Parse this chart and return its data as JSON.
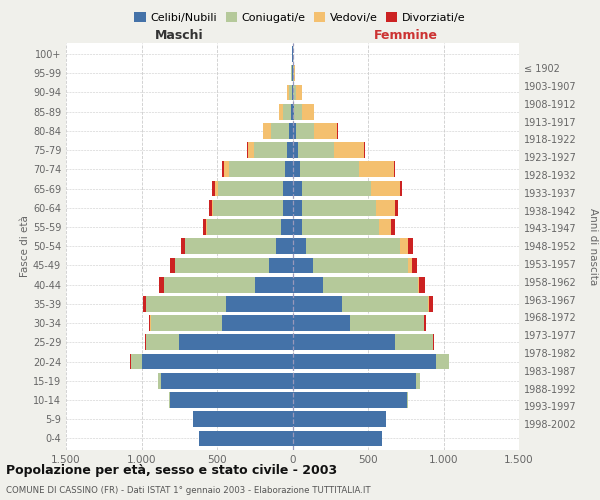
{
  "age_groups": [
    "0-4",
    "5-9",
    "10-14",
    "15-19",
    "20-24",
    "25-29",
    "30-34",
    "35-39",
    "40-44",
    "45-49",
    "50-54",
    "55-59",
    "60-64",
    "65-69",
    "70-74",
    "75-79",
    "80-84",
    "85-89",
    "90-94",
    "95-99",
    "100+"
  ],
  "birth_years": [
    "1998-2002",
    "1993-1997",
    "1988-1992",
    "1983-1987",
    "1978-1982",
    "1973-1977",
    "1968-1972",
    "1963-1967",
    "1958-1962",
    "1953-1957",
    "1948-1952",
    "1943-1947",
    "1938-1942",
    "1933-1937",
    "1928-1932",
    "1923-1927",
    "1918-1922",
    "1913-1917",
    "1908-1912",
    "1903-1907",
    "≤ 1902"
  ],
  "males": {
    "celibi": [
      620,
      660,
      810,
      870,
      1000,
      750,
      470,
      440,
      250,
      155,
      110,
      75,
      65,
      65,
      50,
      35,
      20,
      10,
      5,
      2,
      2
    ],
    "coniugati": [
      1,
      2,
      5,
      20,
      70,
      220,
      470,
      530,
      600,
      620,
      600,
      490,
      460,
      430,
      370,
      220,
      120,
      50,
      15,
      5,
      2
    ],
    "vedovi": [
      0,
      0,
      0,
      1,
      2,
      1,
      2,
      2,
      2,
      5,
      5,
      5,
      10,
      15,
      35,
      40,
      55,
      30,
      15,
      5,
      1
    ],
    "divorziati": [
      0,
      0,
      0,
      1,
      2,
      5,
      10,
      20,
      30,
      30,
      25,
      20,
      20,
      20,
      10,
      5,
      3,
      2,
      1,
      0,
      0
    ]
  },
  "females": {
    "nubili": [
      590,
      620,
      760,
      820,
      950,
      680,
      380,
      330,
      200,
      135,
      90,
      65,
      60,
      60,
      50,
      35,
      20,
      10,
      5,
      2,
      2
    ],
    "coniugate": [
      1,
      2,
      5,
      25,
      85,
      250,
      490,
      570,
      630,
      630,
      620,
      510,
      490,
      460,
      390,
      240,
      120,
      50,
      15,
      5,
      2
    ],
    "vedove": [
      0,
      0,
      0,
      1,
      2,
      2,
      3,
      5,
      10,
      25,
      55,
      80,
      130,
      190,
      230,
      200,
      155,
      80,
      40,
      10,
      1
    ],
    "divorziate": [
      0,
      0,
      0,
      1,
      2,
      5,
      12,
      25,
      35,
      35,
      30,
      25,
      20,
      15,
      8,
      5,
      4,
      2,
      1,
      0,
      0
    ]
  },
  "colors": {
    "celibi": "#4472a8",
    "coniugati": "#b5c99a",
    "vedovi": "#f4c06f",
    "divorziati": "#cc2222"
  },
  "xlim": 1500,
  "title": "Popolazione per età, sesso e stato civile - 2003",
  "subtitle": "COMUNE DI CASSINO (FR) - Dati ISTAT 1° gennaio 2003 - Elaborazione TUTTITALIA.IT",
  "xlabel_left": "Maschi",
  "xlabel_right": "Femmine",
  "ylabel": "Fasce di età",
  "ylabel_right": "Anni di nascita",
  "legend_labels": [
    "Celibi/Nubili",
    "Coniugati/e",
    "Vedovi/e",
    "Divorziati/e"
  ],
  "bg_color": "#f0f0eb",
  "plot_bg": "#ffffff",
  "grid_color": "#cccccc"
}
